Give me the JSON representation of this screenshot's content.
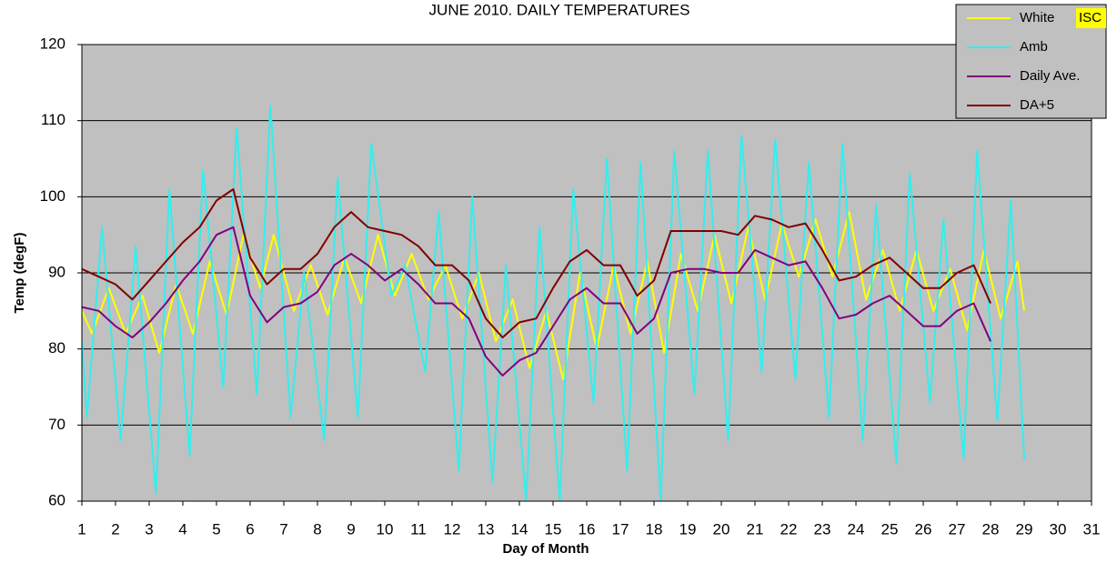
{
  "chart_data": {
    "type": "line",
    "title": "JUNE 2010.  DAILY TEMPERATURES",
    "annotation": "ISC",
    "xlabel": "Day of Month",
    "ylabel": "Temp (degF)",
    "xlim": [
      1,
      31
    ],
    "xticks": [
      1,
      2,
      3,
      4,
      5,
      6,
      7,
      8,
      9,
      10,
      11,
      12,
      13,
      14,
      15,
      16,
      17,
      18,
      19,
      20,
      21,
      22,
      23,
      24,
      25,
      26,
      27,
      28,
      29,
      30,
      31
    ],
    "ylim": [
      60,
      120
    ],
    "yticks": [
      60,
      70,
      80,
      90,
      100,
      110,
      120
    ],
    "grid": true,
    "legend": "top-right",
    "series": [
      {
        "name": "White",
        "color": "#ffff00",
        "x": [
          1,
          1.3,
          1.8,
          2.3,
          2.8,
          3.3,
          3.8,
          4.3,
          4.8,
          5.3,
          5.8,
          6.3,
          6.7,
          7.3,
          7.8,
          8.3,
          8.8,
          9.3,
          9.8,
          10.3,
          10.8,
          11.3,
          11.8,
          12.3,
          12.8,
          13.3,
          13.8,
          14.3,
          14.8,
          15.3,
          15.8,
          16.3,
          16.8,
          17.3,
          17.8,
          18.3,
          18.8,
          19.3,
          19.8,
          20.3,
          20.8,
          21.3,
          21.8,
          22.3,
          22.8,
          23.3,
          23.8,
          24.3,
          24.8,
          25.3,
          25.8,
          26.3,
          26.8,
          27.3,
          27.8,
          28.3,
          28.8,
          29
        ],
        "values": [
          85,
          82,
          88,
          82,
          87,
          79.5,
          88.5,
          82,
          91.5,
          84.5,
          95,
          88,
          95,
          85,
          91,
          84.5,
          92,
          86,
          95,
          87,
          92.5,
          86.5,
          91,
          84,
          90,
          81,
          86.5,
          77.5,
          85,
          76,
          90,
          80,
          91,
          82,
          91.5,
          79.5,
          92.5,
          85,
          95,
          86,
          96,
          86.5,
          96.5,
          89.5,
          97,
          89.5,
          98,
          86.5,
          93,
          85,
          93,
          85,
          90.5,
          82.5,
          93,
          84,
          91.5,
          85
        ]
      },
      {
        "name": "Amb",
        "color": "#33eeee",
        "x": [
          1,
          1.15,
          1.6,
          2.15,
          2.6,
          3.2,
          3.6,
          4.2,
          4.6,
          5.2,
          5.6,
          6.2,
          6.6,
          7.2,
          7.6,
          8.2,
          8.6,
          9.2,
          9.6,
          10.2,
          10.6,
          11.2,
          11.6,
          12.2,
          12.6,
          13.2,
          13.6,
          14.2,
          14.6,
          15.2,
          15.6,
          16.2,
          16.6,
          17.2,
          17.6,
          18.2,
          18.6,
          19.2,
          19.6,
          20.2,
          20.6,
          21.2,
          21.6,
          22.2,
          22.6,
          23.2,
          23.6,
          24.2,
          24.6,
          25.2,
          25.6,
          26.2,
          26.6,
          27.2,
          27.6,
          28.2,
          28.6,
          29
        ],
        "values": [
          81,
          71,
          96,
          68,
          93.5,
          61,
          101,
          66,
          103.5,
          75,
          109,
          74,
          112,
          71,
          90,
          68,
          102.5,
          71,
          107,
          87,
          91,
          77,
          98,
          64,
          100,
          62.5,
          91,
          60,
          96,
          60,
          101,
          73,
          105,
          64,
          104.5,
          60,
          106,
          74,
          106,
          68,
          108,
          77,
          107.5,
          76,
          104.5,
          71,
          107,
          68,
          99,
          65,
          103,
          73,
          97,
          65.5,
          106,
          70.5,
          99.5,
          65.5
        ]
      },
      {
        "name": "Daily Ave.",
        "color": "#800080",
        "x": [
          1,
          1.5,
          2,
          2.5,
          3,
          3.5,
          4,
          4.5,
          5,
          5.5,
          6,
          6.5,
          7,
          7.5,
          8,
          8.5,
          9,
          9.5,
          10,
          10.5,
          11,
          11.5,
          12,
          12.5,
          13,
          13.5,
          14,
          14.5,
          15,
          15.5,
          16,
          16.5,
          17,
          17.5,
          18,
          18.5,
          19,
          19.5,
          20,
          20.5,
          21,
          21.5,
          22,
          22.5,
          23,
          23.5,
          24,
          24.5,
          25,
          25.5,
          26,
          26.5,
          27,
          27.5,
          28
        ],
        "values": [
          85.5,
          85,
          83,
          81.5,
          83.5,
          86,
          89,
          91.5,
          95,
          96,
          87,
          83.5,
          85.5,
          86,
          87.5,
          91,
          92.5,
          91,
          89,
          90.5,
          88.5,
          86,
          86,
          84,
          79,
          76.5,
          78.5,
          79.5,
          83,
          86.5,
          88,
          86,
          86,
          82,
          84,
          90,
          90.5,
          90.5,
          90,
          90,
          93,
          92,
          91,
          91.5,
          88,
          84,
          84.5,
          86,
          87,
          85,
          83,
          83,
          85,
          86,
          81
        ]
      },
      {
        "name": "DA+5",
        "color": "#800000",
        "x": [
          1,
          1.5,
          2,
          2.5,
          3,
          3.5,
          4,
          4.5,
          5,
          5.5,
          6,
          6.5,
          7,
          7.5,
          8,
          8.5,
          9,
          9.5,
          10,
          10.5,
          11,
          11.5,
          12,
          12.5,
          13,
          13.5,
          14,
          14.5,
          15,
          15.5,
          16,
          16.5,
          17,
          17.5,
          18,
          18.5,
          19,
          19.5,
          20,
          20.5,
          21,
          21.5,
          22,
          22.5,
          23,
          23.5,
          24,
          24.5,
          25,
          25.5,
          26,
          26.5,
          27,
          27.5,
          28
        ],
        "values": [
          90.5,
          89.5,
          88.5,
          86.5,
          89,
          91.5,
          94,
          96,
          99.5,
          101,
          92,
          88.5,
          90.5,
          90.5,
          92.5,
          96,
          98,
          96,
          95.5,
          95,
          93.5,
          91,
          91,
          89,
          84,
          81.5,
          83.5,
          84,
          88,
          91.5,
          93,
          91,
          91,
          87,
          89,
          95.5,
          95.5,
          95.5,
          95.5,
          95,
          97.5,
          97,
          96,
          96.5,
          93,
          89,
          89.5,
          91,
          92,
          90,
          88,
          88,
          90,
          91,
          86
        ]
      }
    ]
  }
}
